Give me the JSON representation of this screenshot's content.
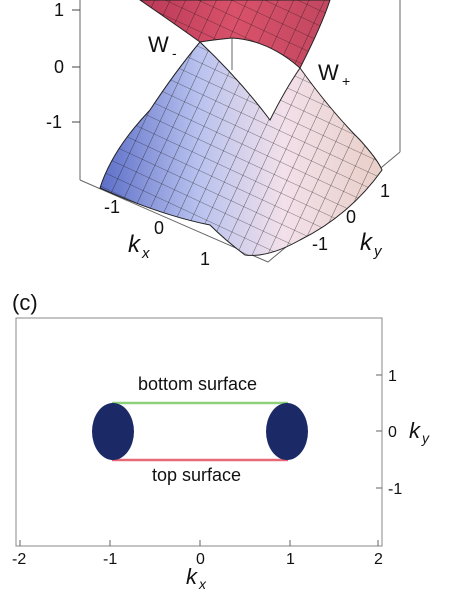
{
  "panel_top": {
    "z_ticks": [
      "1",
      "0",
      "-1"
    ],
    "kx_ticks": [
      "-1",
      "0",
      "1"
    ],
    "ky_ticks": [
      "1",
      "0",
      "-1"
    ],
    "kx_label": "k",
    "kx_sub": "x",
    "ky_label": "k",
    "ky_sub": "y",
    "weyl_minus": "W",
    "weyl_minus_sub": "-",
    "weyl_plus": "W",
    "weyl_plus_sub": "+"
  },
  "panel_c": {
    "label": "(c)",
    "x_ticks": [
      "-2",
      "-1",
      "0",
      "1",
      "2"
    ],
    "y_ticks": [
      "1",
      "0",
      "-1"
    ],
    "x_label": "k",
    "x_sub": "x",
    "y_label": "k",
    "y_sub": "y",
    "bottom_surface": "bottom surface",
    "top_surface": "top surface",
    "colors": {
      "pocket": "#1b2a66",
      "bottom_arc": "#8fd07a",
      "top_arc": "#e86a78",
      "frame": "#888888"
    }
  }
}
